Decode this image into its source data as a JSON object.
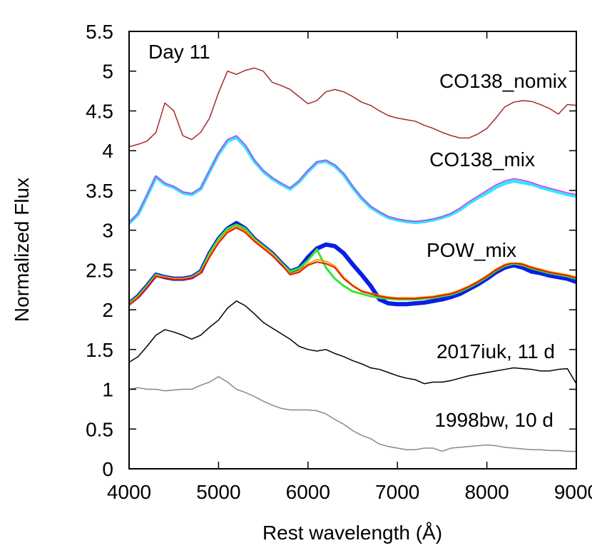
{
  "chart_data": {
    "type": "line",
    "annotation": "Day 11",
    "x_label": "Rest wavelength (Å)",
    "y_label": "Normalized Flux",
    "xlim": [
      4000,
      9000
    ],
    "ylim": [
      0,
      5.5
    ],
    "xticks": [
      4000,
      5000,
      6000,
      7000,
      8000,
      9000
    ],
    "yticks": [
      0,
      0.5,
      1,
      1.5,
      2,
      2.5,
      3,
      3.5,
      4,
      4.5,
      5,
      5.5
    ],
    "x": [
      4000,
      4100,
      4200,
      4300,
      4400,
      4500,
      4600,
      4700,
      4800,
      4900,
      5000,
      5100,
      5200,
      5300,
      5400,
      5500,
      5600,
      5700,
      5800,
      5900,
      6000,
      6100,
      6200,
      6300,
      6400,
      6500,
      6600,
      6700,
      6800,
      6900,
      7000,
      7100,
      7200,
      7300,
      7400,
      7500,
      7600,
      7700,
      7800,
      7900,
      8000,
      8100,
      8200,
      8300,
      8400,
      8500,
      8600,
      8700,
      8800,
      8900,
      9000
    ],
    "series": [
      {
        "name": "CO138_nomix",
        "color": "#a52a2a",
        "values": [
          4.05,
          4.08,
          4.12,
          4.23,
          4.6,
          4.5,
          4.19,
          4.14,
          4.23,
          4.41,
          4.73,
          5.0,
          4.96,
          5.01,
          5.04,
          5.0,
          4.86,
          4.82,
          4.77,
          4.68,
          4.59,
          4.63,
          4.74,
          4.77,
          4.74,
          4.68,
          4.61,
          4.57,
          4.5,
          4.44,
          4.41,
          4.39,
          4.37,
          4.32,
          4.28,
          4.23,
          4.19,
          4.16,
          4.16,
          4.21,
          4.28,
          4.41,
          4.55,
          4.61,
          4.63,
          4.62,
          4.58,
          4.53,
          4.46,
          4.58,
          4.57
        ]
      },
      {
        "name": "CO138_mix",
        "color": "#33e5ff",
        "values": [
          3.09,
          3.2,
          3.43,
          3.67,
          3.58,
          3.54,
          3.47,
          3.45,
          3.52,
          3.74,
          3.96,
          4.12,
          4.17,
          4.05,
          3.87,
          3.74,
          3.65,
          3.58,
          3.52,
          3.61,
          3.74,
          3.85,
          3.87,
          3.81,
          3.7,
          3.54,
          3.4,
          3.29,
          3.22,
          3.16,
          3.13,
          3.11,
          3.1,
          3.11,
          3.13,
          3.16,
          3.2,
          3.26,
          3.34,
          3.41,
          3.47,
          3.54,
          3.59,
          3.62,
          3.6,
          3.58,
          3.54,
          3.51,
          3.48,
          3.45,
          3.43
        ]
      },
      {
        "color": "#e033e0",
        "values": [
          3.1,
          3.21,
          3.44,
          3.68,
          3.59,
          3.55,
          3.48,
          3.46,
          3.53,
          3.75,
          3.97,
          4.14,
          4.19,
          4.07,
          3.88,
          3.75,
          3.66,
          3.59,
          3.53,
          3.62,
          3.75,
          3.86,
          3.88,
          3.82,
          3.71,
          3.55,
          3.41,
          3.3,
          3.23,
          3.17,
          3.14,
          3.12,
          3.11,
          3.12,
          3.14,
          3.17,
          3.21,
          3.28,
          3.36,
          3.43,
          3.5,
          3.57,
          3.62,
          3.65,
          3.63,
          3.6,
          3.56,
          3.53,
          3.5,
          3.47,
          3.45
        ]
      },
      {
        "name": "POW_mix",
        "color": "#0a1ee6",
        "values": [
          2.08,
          2.17,
          2.3,
          2.44,
          2.41,
          2.39,
          2.39,
          2.41,
          2.48,
          2.71,
          2.89,
          3.02,
          3.09,
          3.02,
          2.89,
          2.8,
          2.71,
          2.59,
          2.48,
          2.52,
          2.66,
          2.77,
          2.82,
          2.8,
          2.71,
          2.57,
          2.44,
          2.3,
          2.13,
          2.08,
          2.07,
          2.07,
          2.08,
          2.09,
          2.11,
          2.13,
          2.16,
          2.2,
          2.26,
          2.32,
          2.39,
          2.47,
          2.53,
          2.56,
          2.53,
          2.48,
          2.46,
          2.43,
          2.41,
          2.39,
          2.35
        ]
      },
      {
        "color": "#33e633",
        "values": [
          2.08,
          2.17,
          2.3,
          2.44,
          2.41,
          2.39,
          2.39,
          2.41,
          2.48,
          2.71,
          2.89,
          3.02,
          3.07,
          3.02,
          2.89,
          2.8,
          2.71,
          2.59,
          2.48,
          2.52,
          2.62,
          2.76,
          2.53,
          2.39,
          2.3,
          2.23,
          2.2,
          2.17,
          2.15,
          2.14,
          2.13,
          2.13,
          2.13,
          2.14,
          2.15,
          2.17,
          2.19,
          2.23,
          2.28,
          2.34,
          2.41,
          2.49,
          2.55,
          2.58,
          2.56,
          2.52,
          2.49,
          2.46,
          2.44,
          2.42,
          2.39
        ]
      },
      {
        "color": "#ff9900",
        "values": [
          2.07,
          2.16,
          2.29,
          2.43,
          2.41,
          2.39,
          2.39,
          2.41,
          2.47,
          2.68,
          2.86,
          2.99,
          3.05,
          2.99,
          2.88,
          2.79,
          2.7,
          2.58,
          2.45,
          2.49,
          2.58,
          2.63,
          2.61,
          2.55,
          2.41,
          2.31,
          2.24,
          2.21,
          2.18,
          2.16,
          2.15,
          2.15,
          2.15,
          2.16,
          2.17,
          2.19,
          2.21,
          2.25,
          2.3,
          2.36,
          2.43,
          2.51,
          2.57,
          2.6,
          2.58,
          2.54,
          2.51,
          2.48,
          2.46,
          2.44,
          2.41
        ]
      },
      {
        "color": "#e61a00",
        "values": [
          2.06,
          2.15,
          2.28,
          2.42,
          2.4,
          2.38,
          2.38,
          2.4,
          2.46,
          2.66,
          2.84,
          2.97,
          3.03,
          2.97,
          2.86,
          2.77,
          2.68,
          2.57,
          2.44,
          2.47,
          2.56,
          2.6,
          2.58,
          2.53,
          2.39,
          2.3,
          2.23,
          2.2,
          2.17,
          2.15,
          2.14,
          2.14,
          2.14,
          2.15,
          2.16,
          2.18,
          2.2,
          2.24,
          2.29,
          2.35,
          2.42,
          2.5,
          2.56,
          2.59,
          2.57,
          2.53,
          2.5,
          2.47,
          2.45,
          2.43,
          2.4
        ]
      },
      {
        "name": "2017iuk, 11 d",
        "color": "#000000",
        "values": [
          1.34,
          1.41,
          1.54,
          1.68,
          1.75,
          1.72,
          1.68,
          1.63,
          1.68,
          1.78,
          1.87,
          2.02,
          2.11,
          2.05,
          1.95,
          1.84,
          1.77,
          1.7,
          1.63,
          1.54,
          1.5,
          1.48,
          1.5,
          1.45,
          1.41,
          1.36,
          1.32,
          1.27,
          1.25,
          1.21,
          1.17,
          1.14,
          1.12,
          1.07,
          1.09,
          1.09,
          1.11,
          1.14,
          1.17,
          1.19,
          1.21,
          1.23,
          1.25,
          1.27,
          1.26,
          1.25,
          1.23,
          1.23,
          1.25,
          1.26,
          1.07
        ]
      },
      {
        "name": "1998bw, 10 d",
        "color": "#888888",
        "values": [
          1.0,
          1.02,
          1.0,
          1.0,
          0.98,
          0.99,
          1.0,
          1.0,
          1.05,
          1.09,
          1.16,
          1.09,
          1.0,
          0.96,
          0.91,
          0.85,
          0.8,
          0.76,
          0.74,
          0.74,
          0.74,
          0.73,
          0.69,
          0.62,
          0.56,
          0.48,
          0.42,
          0.38,
          0.31,
          0.28,
          0.26,
          0.24,
          0.24,
          0.26,
          0.26,
          0.22,
          0.26,
          0.27,
          0.28,
          0.29,
          0.3,
          0.29,
          0.27,
          0.26,
          0.25,
          0.24,
          0.24,
          0.23,
          0.23,
          0.22,
          0.22
        ]
      }
    ]
  }
}
